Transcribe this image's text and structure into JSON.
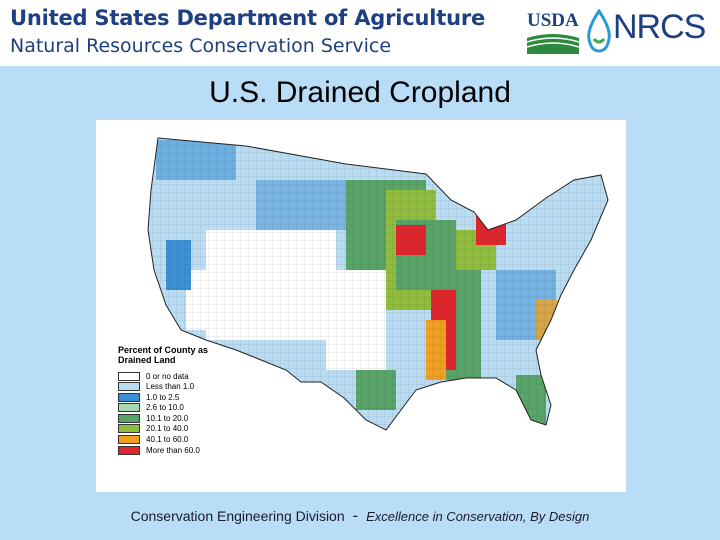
{
  "header": {
    "agency": "United States Department of Agriculture",
    "service": "Natural Resources Conservation Service",
    "logo_usda": "USDA",
    "logo_nrcs": "NRCS"
  },
  "slide_title": "U.S. Drained Cropland",
  "legend": {
    "title": "Percent of County as Drained Land",
    "items": [
      {
        "label": "0 or no data",
        "color": "#ffffff"
      },
      {
        "label": "Less than 1.0",
        "color": "#b9dcf2"
      },
      {
        "label": "1.0 to 2.5",
        "color": "#3b8fd6"
      },
      {
        "label": "2.6 to 10.0",
        "color": "#a8d8b0"
      },
      {
        "label": "10.1 to 20.0",
        "color": "#58a468"
      },
      {
        "label": "20.1 to 40.0",
        "color": "#8fbc3c"
      },
      {
        "label": "40.1 to 60.0",
        "color": "#f0a020"
      },
      {
        "label": "More than 60.0",
        "color": "#e0262c"
      }
    ]
  },
  "footer": {
    "division": "Conservation Engineering Division",
    "separator": "-",
    "tagline": "Excellence in Conservation, By Design"
  }
}
